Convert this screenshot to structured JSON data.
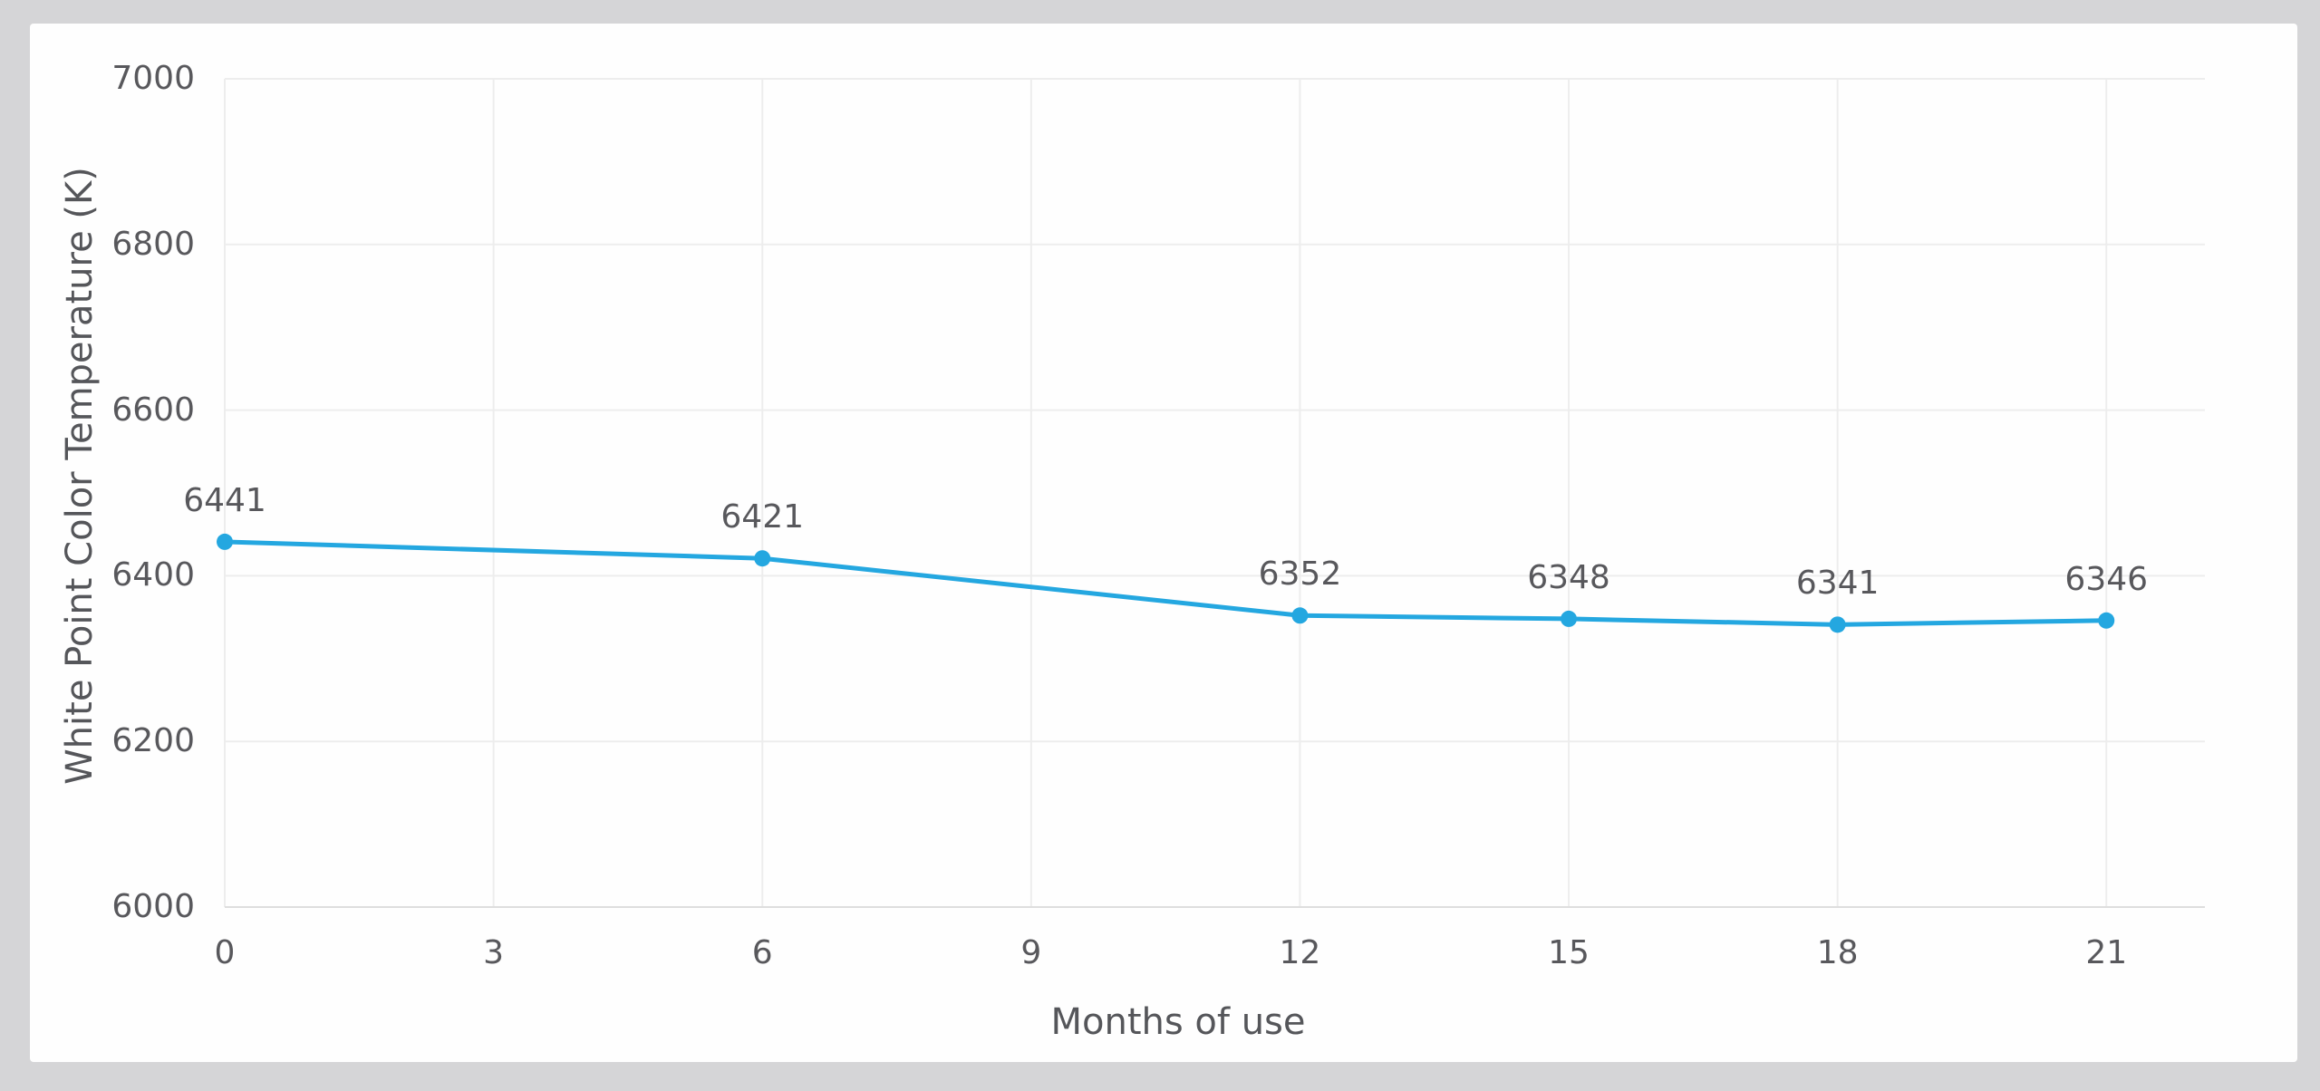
{
  "page": {
    "background_color": "#d5d5d7",
    "card_color": "#fefefe"
  },
  "chart_data": {
    "type": "line",
    "title": "",
    "xlabel": "Months of use",
    "ylabel": "White Point Color Temperature (K)",
    "x": [
      0,
      6,
      12,
      15,
      18,
      21
    ],
    "values": [
      6441,
      6421,
      6352,
      6348,
      6341,
      6346
    ],
    "point_labels": [
      "6441",
      "6421",
      "6352",
      "6348",
      "6341",
      "6346"
    ],
    "xticks": [
      "0",
      "3",
      "6",
      "9",
      "12",
      "15",
      "18",
      "21"
    ],
    "xtick_values": [
      0,
      3,
      6,
      9,
      12,
      15,
      18,
      21
    ],
    "yticks": [
      "6000",
      "6200",
      "6400",
      "6600",
      "6800",
      "7000"
    ],
    "ytick_values": [
      6000,
      6200,
      6400,
      6600,
      6800,
      7000
    ],
    "xlim": [
      0,
      22.1
    ],
    "ylim": [
      6000,
      7000
    ],
    "grid": true,
    "legend": false,
    "line_color": "#24a7e0",
    "marker": "circle",
    "text_color": "#58585c",
    "grid_color": "#ededed",
    "axis_line_color": "#dedede"
  }
}
